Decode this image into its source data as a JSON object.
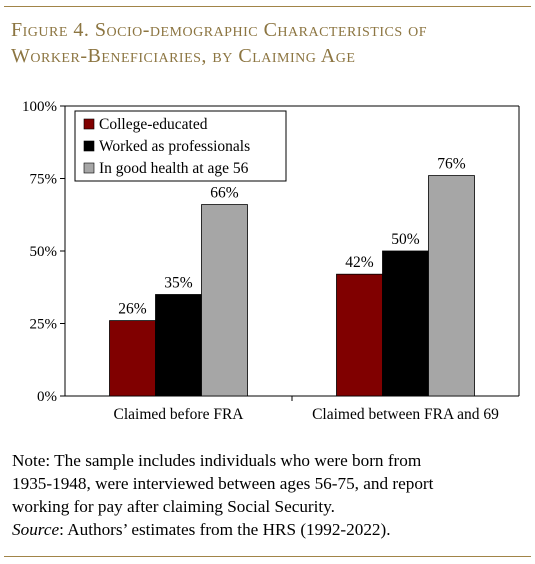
{
  "figure": {
    "title_line1": "Figure 4. Socio-demographic Characteristics of",
    "title_line2": "Worker-Beneficiaries, by Claiming Age"
  },
  "chart_data": {
    "type": "bar",
    "categories": [
      "Claimed before FRA",
      "Claimed between FRA and 69"
    ],
    "series": [
      {
        "name": "College-educated",
        "values": [
          26,
          42
        ],
        "labels": [
          "26%",
          "42%"
        ],
        "color": "#800000"
      },
      {
        "name": "Worked as professionals",
        "values": [
          35,
          50
        ],
        "labels": [
          "35%",
          "50%"
        ],
        "color": "#000000"
      },
      {
        "name": "In good health at age 56",
        "values": [
          66,
          76
        ],
        "labels": [
          "66%",
          "76%"
        ],
        "color": "#a6a6a6"
      }
    ],
    "ylim": [
      0,
      100
    ],
    "yticks": [
      0,
      25,
      50,
      75,
      100
    ],
    "ytick_labels": [
      "0%",
      "25%",
      "50%",
      "75%",
      "100%"
    ],
    "xlabel": "",
    "ylabel": "",
    "grid": false,
    "legend_position": "top-left"
  },
  "note": {
    "line1": "Note: The sample includes individuals who were born from",
    "line2": "1935-1948, were interviewed between ages 56-75, and report",
    "line3": "working for pay after claiming Social Security.",
    "source_label": "Source",
    "source_text": ": Authors’ estimates from the HRS (1992-2022)."
  }
}
